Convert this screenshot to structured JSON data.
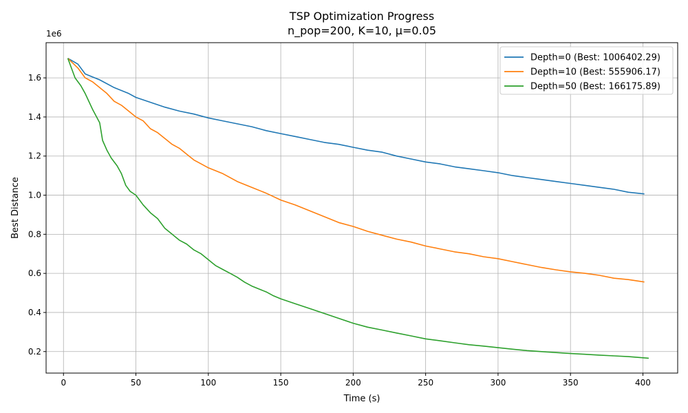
{
  "chart_data": {
    "type": "line",
    "title": "TSP Optimization Progress",
    "subtitle": "n_pop=200, K=10, μ=0.05",
    "xlabel": "Time (s)",
    "ylabel": "Best Distance",
    "y_offset_label": "1e6",
    "xlim": [
      -12,
      424
    ],
    "ylim": [
      90000,
      1780000
    ],
    "x_ticks": [
      0,
      50,
      100,
      150,
      200,
      250,
      300,
      350,
      400
    ],
    "x_tick_labels": [
      "0",
      "50",
      "100",
      "150",
      "200",
      "250",
      "300",
      "350",
      "400"
    ],
    "y_ticks": [
      200000,
      400000,
      600000,
      800000,
      1000000,
      1200000,
      1400000,
      1600000
    ],
    "y_tick_labels": [
      "0.2",
      "0.4",
      "0.6",
      "0.8",
      "1.0",
      "1.2",
      "1.4",
      "1.6"
    ],
    "grid": true,
    "legend_position": "top-right",
    "series": [
      {
        "name": "Depth=0 (Best: 1006402.29)",
        "color": "#1f77b4",
        "x": [
          3,
          10,
          15,
          25,
          35,
          45,
          50,
          60,
          70,
          80,
          90,
          100,
          110,
          120,
          130,
          140,
          150,
          160,
          170,
          180,
          190,
          200,
          210,
          220,
          230,
          240,
          250,
          260,
          270,
          280,
          290,
          300,
          310,
          320,
          330,
          340,
          350,
          360,
          370,
          380,
          390,
          401
        ],
        "y": [
          1700000,
          1670000,
          1620000,
          1590000,
          1550000,
          1520000,
          1500000,
          1475000,
          1450000,
          1430000,
          1415000,
          1395000,
          1380000,
          1365000,
          1350000,
          1330000,
          1315000,
          1300000,
          1285000,
          1270000,
          1260000,
          1245000,
          1230000,
          1220000,
          1200000,
          1185000,
          1170000,
          1160000,
          1145000,
          1135000,
          1125000,
          1115000,
          1100000,
          1090000,
          1080000,
          1070000,
          1060000,
          1050000,
          1040000,
          1030000,
          1015000,
          1006402
        ]
      },
      {
        "name": "Depth=10 (Best: 555906.17)",
        "color": "#ff7f0e",
        "x": [
          3,
          10,
          15,
          20,
          25,
          30,
          35,
          40,
          45,
          50,
          55,
          60,
          65,
          70,
          75,
          80,
          85,
          90,
          95,
          100,
          110,
          120,
          130,
          140,
          150,
          160,
          170,
          180,
          190,
          200,
          210,
          220,
          230,
          240,
          250,
          260,
          270,
          280,
          290,
          300,
          310,
          320,
          330,
          340,
          350,
          360,
          370,
          380,
          390,
          401
        ],
        "y": [
          1700000,
          1650000,
          1600000,
          1580000,
          1550000,
          1520000,
          1480000,
          1460000,
          1430000,
          1400000,
          1380000,
          1340000,
          1320000,
          1290000,
          1260000,
          1240000,
          1210000,
          1180000,
          1160000,
          1140000,
          1110000,
          1070000,
          1040000,
          1010000,
          975000,
          950000,
          920000,
          890000,
          860000,
          840000,
          815000,
          795000,
          775000,
          760000,
          740000,
          725000,
          710000,
          700000,
          685000,
          675000,
          660000,
          645000,
          630000,
          618000,
          608000,
          600000,
          590000,
          575000,
          568000,
          555906
        ]
      },
      {
        "name": "Depth=50 (Best: 166175.89)",
        "color": "#2ca02c",
        "x": [
          3,
          5,
          8,
          12,
          15,
          20,
          25,
          27,
          30,
          33,
          37,
          40,
          43,
          46,
          50,
          55,
          60,
          65,
          70,
          75,
          80,
          85,
          90,
          95,
          100,
          105,
          110,
          115,
          120,
          125,
          130,
          135,
          140,
          145,
          150,
          160,
          170,
          180,
          190,
          200,
          210,
          220,
          230,
          240,
          250,
          260,
          270,
          280,
          290,
          300,
          310,
          320,
          330,
          340,
          350,
          360,
          370,
          380,
          390,
          404
        ],
        "y": [
          1700000,
          1660000,
          1600000,
          1560000,
          1520000,
          1440000,
          1370000,
          1280000,
          1230000,
          1190000,
          1150000,
          1110000,
          1050000,
          1020000,
          1000000,
          950000,
          910000,
          880000,
          830000,
          800000,
          770000,
          750000,
          720000,
          700000,
          670000,
          640000,
          620000,
          600000,
          580000,
          555000,
          535000,
          520000,
          505000,
          485000,
          470000,
          445000,
          420000,
          395000,
          370000,
          345000,
          325000,
          310000,
          295000,
          280000,
          265000,
          255000,
          245000,
          235000,
          228000,
          220000,
          212000,
          205000,
          200000,
          195000,
          190000,
          186000,
          182000,
          178000,
          174000,
          166176
        ]
      }
    ]
  }
}
